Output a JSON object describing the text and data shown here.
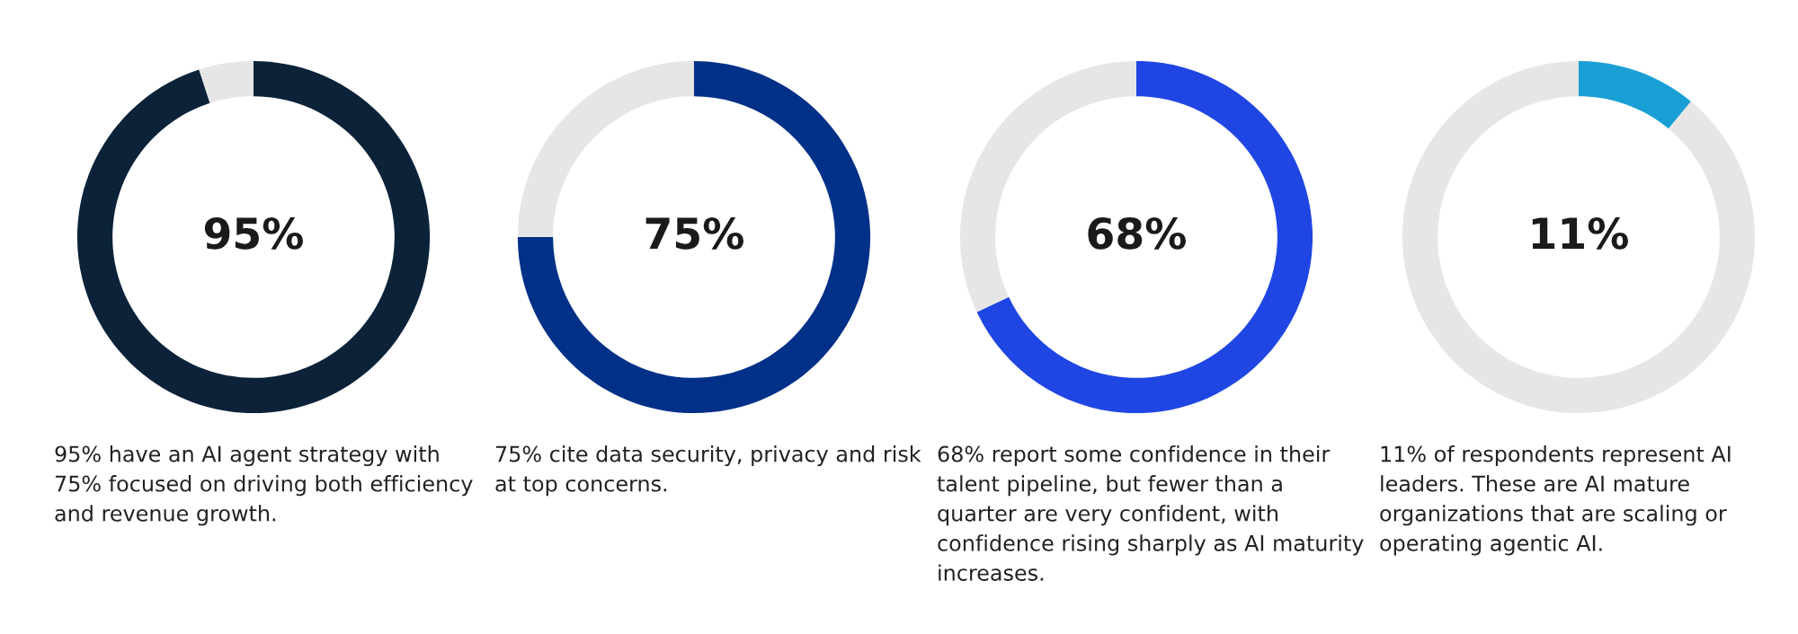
{
  "chart_data": [
    {
      "type": "donut",
      "categories": [
        null,
        null
      ],
      "values": [
        95,
        5
      ],
      "colors": [
        "#0b2239",
        "#e6e6e6"
      ],
      "value_labels": [
        "95%",
        null
      ],
      "annotations": [
        "95% have an AI agent strategy with\n75% focused on driving both efficiency\nand revenue growth."
      ]
    },
    {
      "type": "donut",
      "categories": [
        null,
        null
      ],
      "values": [
        75,
        25
      ],
      "colors": [
        "#003087",
        "#e6e6e6"
      ],
      "value_labels": [
        "75%",
        null
      ],
      "annotations": [
        "75% cite data security, privacy and risk\nat top concerns."
      ]
    },
    {
      "type": "donut",
      "categories": [
        null,
        null
      ],
      "values": [
        68,
        32
      ],
      "colors": [
        "#1f46e3",
        "#e6e6e6"
      ],
      "value_labels": [
        "68%",
        null
      ],
      "annotations": [
        "68% report some confidence in their\ntalent pipeline, but fewer than a\nquarter are very confident, with\nconfidence rising sharply as AI maturity\nincreases."
      ]
    },
    {
      "type": "donut",
      "categories": [
        null,
        null
      ],
      "values": [
        11,
        89
      ],
      "colors": [
        "#1a9fd4",
        "#e6e6e6"
      ],
      "value_labels": [
        "11%",
        null
      ],
      "annotations": [
        "11% of respondents represent AI\nleaders. These are AI mature\norganizations that are scaling or\noperating agentic AI."
      ]
    }
  ]
}
